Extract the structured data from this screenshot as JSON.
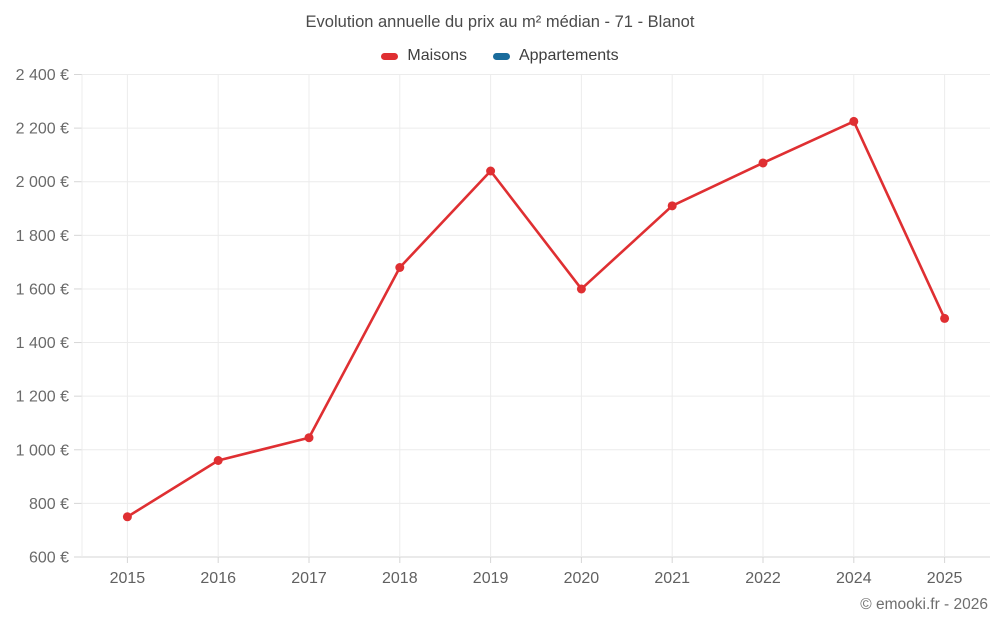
{
  "chart_data": {
    "type": "line",
    "title": "Evolution annuelle du prix au m² médian - 71 - Blanot",
    "categories": [
      "2015",
      "2016",
      "2017",
      "2018",
      "2019",
      "2020",
      "2021",
      "2022",
      "2024",
      "2025"
    ],
    "series": [
      {
        "name": "Maisons",
        "color": "#df2f32",
        "values": [
          750,
          960,
          1045,
          1680,
          2040,
          1600,
          1910,
          2070,
          2225,
          1490
        ]
      },
      {
        "name": "Appartements",
        "color": "#1a6c9c",
        "values": []
      }
    ],
    "xlabel": "",
    "ylabel": "",
    "ylim": [
      600,
      2400
    ],
    "grid": true,
    "legend_position": "top",
    "yticks": [
      {
        "value": 600,
        "label": "600 €"
      },
      {
        "value": 800,
        "label": "800 €"
      },
      {
        "value": 1000,
        "label": "1 000 €"
      },
      {
        "value": 1200,
        "label": "1 200 €"
      },
      {
        "value": 1400,
        "label": "1 400 €"
      },
      {
        "value": 1600,
        "label": "1 600 €"
      },
      {
        "value": 1800,
        "label": "1 800 €"
      },
      {
        "value": 2000,
        "label": "2 000 €"
      },
      {
        "value": 2200,
        "label": "2 200 €"
      },
      {
        "value": 2400,
        "label": "2 400 €"
      }
    ]
  },
  "footer": {
    "credit": "© emooki.fr - 2026"
  }
}
